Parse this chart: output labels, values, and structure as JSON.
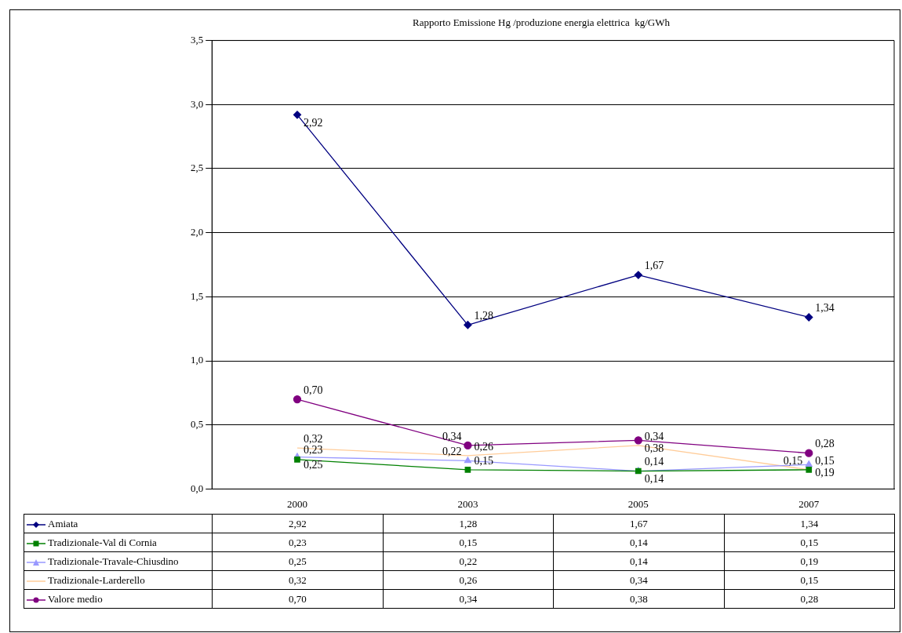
{
  "chart_data": {
    "type": "line",
    "title": "Rapporto Emissione Hg /produzione energia elettrica  kg/GWh",
    "categories": [
      "2000",
      "2003",
      "2005",
      "2007"
    ],
    "series": [
      {
        "name": "Amiata",
        "color": "#000080",
        "marker": "diamond",
        "values": [
          2.92,
          1.28,
          1.67,
          1.34
        ],
        "value_labels": [
          "2,92",
          "1,28",
          "1,67",
          "1,34"
        ]
      },
      {
        "name": "Tradizionale-Val di Cornia",
        "color": "#008000",
        "marker": "square",
        "values": [
          0.23,
          0.15,
          0.14,
          0.15
        ],
        "value_labels": [
          "0,23",
          "0,15",
          "0,14",
          "0,15"
        ]
      },
      {
        "name": "Tradizionale-Travale-Chiusdino",
        "color": "#9999ff",
        "marker": "triangle",
        "values": [
          0.25,
          0.22,
          0.14,
          0.19
        ],
        "value_labels": [
          "0,25",
          "0,22",
          "0,14",
          "0,19"
        ]
      },
      {
        "name": "Tradizionale-Larderello",
        "color": "#ffcc99",
        "marker": "none",
        "values": [
          0.32,
          0.26,
          0.34,
          0.15
        ],
        "value_labels": [
          "0,32",
          "0,26",
          "0,34",
          "0,15"
        ]
      },
      {
        "name": "Valore medio",
        "color": "#800080",
        "marker": "circle",
        "values": [
          0.7,
          0.34,
          0.38,
          0.28
        ],
        "value_labels": [
          "0,70",
          "0,34",
          "0,38",
          "0,28"
        ]
      }
    ],
    "ylim": [
      0,
      3.5
    ],
    "yticks": [
      {
        "value": 0,
        "label": "0,0"
      },
      {
        "value": 0.5,
        "label": "0,5"
      },
      {
        "value": 1,
        "label": "1,0"
      },
      {
        "value": 1.5,
        "label": "1,5"
      },
      {
        "value": 2,
        "label": "2,0"
      },
      {
        "value": 2.5,
        "label": "2,5"
      },
      {
        "value": 3,
        "label": "3,0"
      },
      {
        "value": 3.5,
        "label": "3,5"
      }
    ],
    "grid": "y",
    "legend": "bottom"
  }
}
